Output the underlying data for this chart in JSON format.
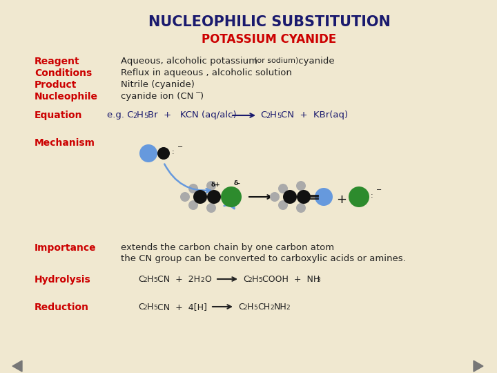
{
  "bg_color": "#f0e8d0",
  "title": "NUCLEOPHILIC SUBSTITUTION",
  "subtitle": "POTASSIUM CYANIDE",
  "title_color": "#1a1a6e",
  "subtitle_color": "#cc0000",
  "label_color": "#cc0000",
  "text_color": "#222222",
  "equation_color": "#1a1a6e",
  "arrow_color": "#555555",
  "blue_atom": "#6699dd",
  "green_atom": "#2d8b2d",
  "black_atom": "#111111",
  "grey_atom": "#aaaaaa",
  "nav_color": "#777777",
  "importance_line1": "extends the carbon chain by one carbon atom",
  "importance_line2": "the CN group can be converted to carboxylic acids or amines."
}
